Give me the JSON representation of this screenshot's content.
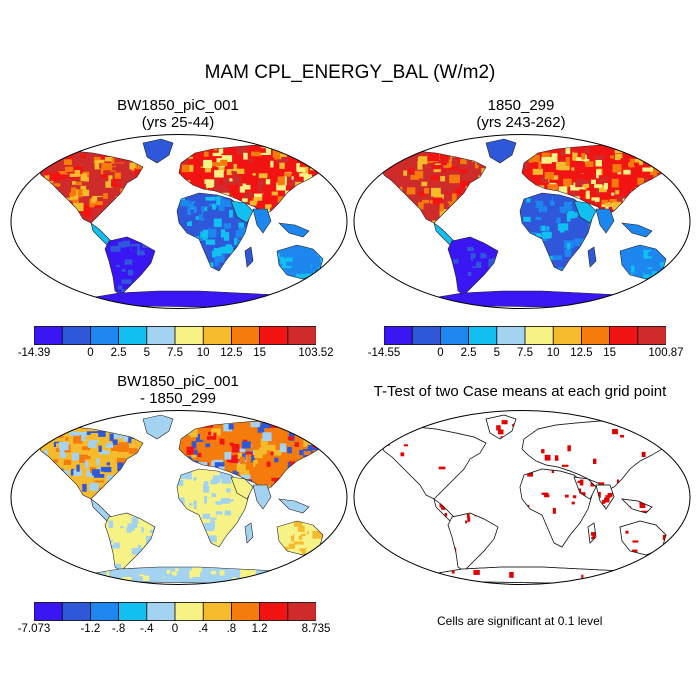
{
  "figure": {
    "title": "MAM CPL_ENERGY_BAL (W/m2)",
    "note": "Cells are significant at 0.1 level"
  },
  "chart_data": [
    {
      "type": "heatmap",
      "title": "BW1850_piC_001",
      "subtitle": "(yrs 25-44)",
      "variable": "CPL_ENERGY_BAL",
      "units": "W/m2",
      "projection": "Robinson world map",
      "colorbar": {
        "colors": [
          "#3a17f2",
          "#2e58d9",
          "#1d86ef",
          "#11bff0",
          "#a3d3f0",
          "#f7f286",
          "#f5bb2c",
          "#f57c0c",
          "#f21313",
          "#cf2b2b"
        ],
        "tick_labels": [
          "-14.39",
          "0",
          "2.5",
          "5",
          "7.5",
          "10",
          "12.5",
          "15",
          "103.52"
        ],
        "min": -14.39,
        "max": 103.52,
        "levels": [
          0,
          2.5,
          5,
          7.5,
          10,
          12.5,
          15
        ]
      }
    },
    {
      "type": "heatmap",
      "title": "1850_299",
      "subtitle": "(yrs 243-262)",
      "variable": "CPL_ENERGY_BAL",
      "units": "W/m2",
      "projection": "Robinson world map",
      "colorbar": {
        "colors": [
          "#3a17f2",
          "#2e58d9",
          "#1d86ef",
          "#11bff0",
          "#a3d3f0",
          "#f7f286",
          "#f5bb2c",
          "#f57c0c",
          "#f21313",
          "#cf2b2b"
        ],
        "tick_labels": [
          "-14.55",
          "0",
          "2.5",
          "5",
          "7.5",
          "10",
          "12.5",
          "15",
          "100.87"
        ],
        "min": -14.55,
        "max": 100.87,
        "levels": [
          0,
          2.5,
          5,
          7.5,
          10,
          12.5,
          15
        ]
      }
    },
    {
      "type": "heatmap",
      "title": "BW1850_piC_001",
      "subtitle": "- 1850_299",
      "variable": "CPL_ENERGY_BAL difference",
      "units": "W/m2",
      "projection": "Robinson world map",
      "colorbar": {
        "colors": [
          "#3a17f2",
          "#2e58d9",
          "#1d86ef",
          "#11bff0",
          "#a3d3f0",
          "#f7f286",
          "#f5bb2c",
          "#f57c0c",
          "#f21313",
          "#cf2b2b"
        ],
        "tick_labels": [
          "-7.073",
          "-1.2",
          "-.8",
          "-.4",
          "0",
          ".4",
          ".8",
          "1.2",
          "8.735"
        ],
        "min": -7.073,
        "max": 8.735,
        "levels": [
          -1.2,
          -0.8,
          -0.4,
          0,
          0.4,
          0.8,
          1.2
        ]
      }
    },
    {
      "type": "heatmap",
      "title": "T-Test of two Case means at each grid point",
      "variable": "significance mask",
      "significance_level": 0.1,
      "mask_color": "#e00000",
      "projection": "Robinson world map"
    }
  ],
  "palette": {
    "ocean": "#ffffff",
    "coast": "#222222",
    "sig_red": "#e00000"
  }
}
